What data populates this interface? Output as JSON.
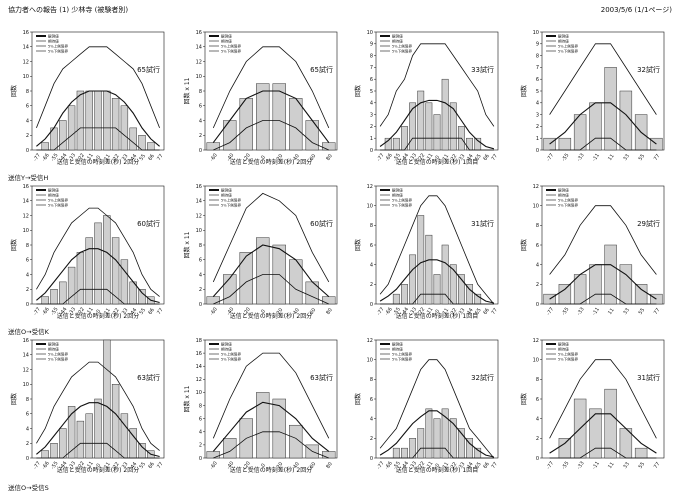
{
  "header": {
    "title": "協力者への報告 (1) 少林寺 (被験者別)",
    "date": "2003/5/6 (1/1ページ)"
  },
  "sections": [
    "送信Y→受信H",
    "送信O→受信K",
    "送信O→受信S"
  ],
  "legend_labels": [
    "観測値",
    "期待値",
    "5%上側限界",
    "5%下側限界"
  ],
  "colors": {
    "bar_fill": "#cfcfcf",
    "bar_stroke": "#333333",
    "line": "#111111"
  },
  "chart_data": [
    {
      "type": "bar",
      "trial_label": "65試行",
      "ylabel": "回数",
      "xlabel": "送信と受信の時刻差(秒)  2回分",
      "ylim": [
        0,
        16
      ],
      "yticks": [
        0,
        2,
        4,
        6,
        8,
        10,
        12,
        14,
        16
      ],
      "categories": [
        "-77",
        "-66",
        "-55",
        "-44",
        "-33",
        "-22",
        "-11",
        "0",
        "11",
        "22",
        "33",
        "44",
        "55",
        "66",
        "77"
      ],
      "values": [
        0,
        1,
        3,
        4,
        6,
        8,
        8,
        8,
        8,
        7,
        6,
        3,
        2,
        1,
        0
      ],
      "series": [
        {
          "name": "期待値",
          "values": [
            0.5,
            1.5,
            3,
            5,
            6.5,
            7.5,
            8,
            8,
            8,
            7.5,
            6.5,
            5,
            3,
            1.5,
            0.5
          ]
        },
        {
          "name": "5%上側限界",
          "values": [
            3,
            6,
            9,
            11,
            12,
            13,
            14,
            14,
            14,
            13,
            12,
            11,
            9,
            6,
            3
          ]
        },
        {
          "name": "5%下側限界",
          "values": [
            0,
            0,
            0,
            1,
            2,
            3,
            3,
            3,
            3,
            3,
            2,
            1,
            0,
            0,
            0
          ]
        }
      ]
    },
    {
      "type": "bar",
      "trial_label": "65試行",
      "ylabel": "回数 x 11",
      "xlabel": "送信と受信の時刻差(秒)  2回分",
      "ylim": [
        0,
        16
      ],
      "yticks": [
        0,
        2,
        4,
        6,
        8,
        10,
        12,
        14,
        16
      ],
      "categories": [
        "-60",
        "-40",
        "-20",
        "0",
        "20",
        "40",
        "60",
        "80"
      ],
      "values": [
        1,
        4,
        7,
        9,
        9,
        7,
        4,
        1
      ],
      "series": [
        {
          "name": "期待値",
          "values": [
            1,
            4,
            7,
            8,
            8,
            7,
            4,
            1
          ]
        },
        {
          "name": "5%上側限界",
          "values": [
            3,
            8,
            12,
            14,
            14,
            12,
            8,
            3
          ]
        },
        {
          "name": "5%下側限界",
          "values": [
            0,
            1,
            3,
            4,
            4,
            3,
            1,
            0
          ]
        }
      ]
    },
    {
      "type": "bar",
      "trial_label": "33試行",
      "ylabel": "回数",
      "xlabel": "送信と受信の時刻差(秒)  1回目",
      "ylim": [
        0,
        10
      ],
      "yticks": [
        0,
        1,
        2,
        3,
        4,
        5,
        6,
        7,
        8,
        9,
        10
      ],
      "categories": [
        "-77",
        "-66",
        "-55",
        "-44",
        "-33",
        "-22",
        "-11",
        "0",
        "11",
        "22",
        "33",
        "44",
        "55",
        "66",
        "77"
      ],
      "values": [
        0,
        1,
        1,
        2,
        4,
        5,
        4,
        3,
        6,
        4,
        2,
        1,
        1,
        0,
        0
      ],
      "series": [
        {
          "name": "期待値",
          "values": [
            0.3,
            0.8,
            1.5,
            2.5,
            3.5,
            4,
            4.2,
            4.2,
            4,
            3.5,
            2.5,
            1.5,
            0.8,
            0.3,
            0.1
          ]
        },
        {
          "name": "5%上側限界",
          "values": [
            2,
            3,
            5,
            6,
            8,
            9,
            9,
            9,
            9,
            8,
            7,
            6,
            5,
            3,
            2
          ]
        },
        {
          "name": "5%下側限界",
          "values": [
            0,
            0,
            0,
            0,
            1,
            1,
            1,
            1,
            1,
            1,
            1,
            0,
            0,
            0,
            0
          ]
        }
      ]
    },
    {
      "type": "bar",
      "trial_label": "32試行",
      "ylabel": "回数",
      "xlabel": "",
      "ylim": [
        0,
        10
      ],
      "yticks": [
        0,
        1,
        2,
        3,
        4,
        5,
        6,
        7,
        8,
        9,
        10
      ],
      "categories": [
        "-77",
        "-55",
        "-33",
        "-11",
        "11",
        "33",
        "55",
        "77"
      ],
      "values": [
        1,
        1,
        3,
        4,
        7,
        5,
        3,
        1
      ],
      "series": [
        {
          "name": "期待値",
          "values": [
            0.5,
            1.5,
            3,
            4,
            4,
            3,
            1.5,
            0.5
          ]
        },
        {
          "name": "5%上側限界",
          "values": [
            3,
            5,
            7,
            9,
            9,
            7,
            5,
            3
          ]
        },
        {
          "name": "5%下側限界",
          "values": [
            0,
            0,
            0,
            1,
            1,
            0,
            0,
            0
          ]
        }
      ]
    },
    {
      "type": "bar",
      "trial_label": "60試行",
      "ylabel": "回数",
      "xlabel": "送信と受信の時刻差(秒)  2回分",
      "ylim": [
        0,
        16
      ],
      "yticks": [
        0,
        2,
        4,
        6,
        8,
        10,
        12,
        14,
        16
      ],
      "categories": [
        "-77",
        "-66",
        "-55",
        "-44",
        "-33",
        "-22",
        "-11",
        "0",
        "11",
        "22",
        "33",
        "44",
        "55",
        "66",
        "77"
      ],
      "values": [
        0,
        1,
        2,
        3,
        5,
        7,
        9,
        11,
        12,
        9,
        6,
        3,
        2,
        1,
        0
      ],
      "series": [
        {
          "name": "期待値",
          "values": [
            0.5,
            1.5,
            3,
            4.5,
            6,
            7,
            7.5,
            7.5,
            7,
            6,
            4.5,
            3,
            1.5,
            0.5,
            0.2
          ]
        },
        {
          "name": "5%上側限界",
          "values": [
            2,
            4,
            7,
            9,
            11,
            12,
            13,
            13,
            12,
            11,
            9,
            7,
            4,
            2,
            1
          ]
        },
        {
          "name": "5%下側限界",
          "values": [
            0,
            0,
            0,
            0,
            1,
            2,
            2,
            2,
            2,
            1,
            0,
            0,
            0,
            0,
            0
          ]
        }
      ]
    },
    {
      "type": "bar",
      "trial_label": "60試行",
      "ylabel": "回数 x 11",
      "xlabel": "送信と受信の時刻差(秒)  2回分",
      "ylim": [
        0,
        16
      ],
      "yticks": [
        0,
        2,
        4,
        6,
        8,
        10,
        12,
        14,
        16
      ],
      "categories": [
        "-60",
        "-40",
        "-20",
        "0",
        "20",
        "40",
        "60",
        "80"
      ],
      "values": [
        1,
        4,
        7,
        9,
        8,
        6,
        3,
        1
      ],
      "series": [
        {
          "name": "期待値",
          "values": [
            1,
            3.5,
            6.5,
            8,
            7.5,
            6,
            3,
            1
          ]
        },
        {
          "name": "5%上側限界",
          "values": [
            3,
            8,
            13,
            15,
            14,
            12,
            7,
            3
          ]
        },
        {
          "name": "5%下側限界",
          "values": [
            0,
            1,
            3,
            4,
            4,
            2,
            1,
            0
          ]
        }
      ]
    },
    {
      "type": "bar",
      "trial_label": "31試行",
      "ylabel": "回数",
      "xlabel": "送信と受信の時刻差(秒)  1回目",
      "ylim": [
        0,
        12
      ],
      "yticks": [
        0,
        2,
        4,
        6,
        8,
        10,
        12
      ],
      "categories": [
        "-77",
        "-66",
        "-55",
        "-44",
        "-33",
        "-22",
        "-11",
        "0",
        "11",
        "22",
        "33",
        "44",
        "55",
        "66",
        "77"
      ],
      "values": [
        0,
        0,
        1,
        2,
        5,
        9,
        7,
        3,
        6,
        4,
        3,
        2,
        1,
        0,
        0
      ],
      "series": [
        {
          "name": "期待値",
          "values": [
            0.3,
            0.8,
            1.5,
            2.5,
            3.5,
            4.2,
            4.5,
            4.5,
            4.2,
            3.5,
            2.5,
            1.5,
            0.8,
            0.3,
            0.1
          ]
        },
        {
          "name": "5%上側限界",
          "values": [
            1,
            2,
            4,
            6,
            8,
            10,
            11,
            11,
            10,
            8,
            6,
            4,
            2,
            1,
            0
          ]
        },
        {
          "name": "5%下側限界",
          "values": [
            0,
            0,
            0,
            0,
            0,
            1,
            1,
            1,
            1,
            0,
            0,
            0,
            0,
            0,
            0
          ]
        }
      ]
    },
    {
      "type": "bar",
      "trial_label": "29試行",
      "ylabel": "回数",
      "xlabel": "",
      "ylim": [
        0,
        12
      ],
      "yticks": [
        0,
        2,
        4,
        6,
        8,
        10,
        12
      ],
      "categories": [
        "-77",
        "-55",
        "-33",
        "-11",
        "11",
        "33",
        "55",
        "77"
      ],
      "values": [
        1,
        2,
        3,
        4,
        6,
        4,
        2,
        1
      ],
      "series": [
        {
          "name": "期待値",
          "values": [
            0.5,
            1.5,
            3,
            4,
            4,
            3,
            1.5,
            0.5
          ]
        },
        {
          "name": "5%上側限界",
          "values": [
            3,
            5,
            8,
            10,
            10,
            8,
            5,
            3
          ]
        },
        {
          "name": "5%下側限界",
          "values": [
            0,
            0,
            0,
            1,
            1,
            0,
            0,
            0
          ]
        }
      ]
    },
    {
      "type": "bar",
      "trial_label": "63試行",
      "ylabel": "回数",
      "xlabel": "送信と受信の時刻差(秒)  2回分",
      "ylim": [
        0,
        16
      ],
      "yticks": [
        0,
        2,
        4,
        6,
        8,
        10,
        12,
        14,
        16
      ],
      "categories": [
        "-77",
        "-66",
        "-55",
        "-44",
        "-33",
        "-22",
        "-11",
        "0",
        "11",
        "22",
        "33",
        "44",
        "55",
        "66",
        "77"
      ],
      "values": [
        0,
        1,
        2,
        4,
        7,
        5,
        6,
        8,
        16,
        10,
        6,
        4,
        2,
        1,
        0
      ],
      "series": [
        {
          "name": "期待値",
          "values": [
            0.5,
            1.5,
            3,
            4.5,
            6,
            7,
            7.5,
            7.5,
            7,
            6,
            4.5,
            3,
            1.5,
            0.5,
            0.2
          ]
        },
        {
          "name": "5%上側限界",
          "values": [
            2,
            4,
            7,
            9,
            11,
            12,
            13,
            13,
            12,
            11,
            9,
            7,
            4,
            2,
            1
          ]
        },
        {
          "name": "5%下側限界",
          "values": [
            0,
            0,
            0,
            0,
            1,
            2,
            2,
            2,
            2,
            1,
            0,
            0,
            0,
            0,
            0
          ]
        }
      ]
    },
    {
      "type": "bar",
      "trial_label": "63試行",
      "ylabel": "回数 x 11",
      "xlabel": "送信と受信の時刻差(秒)  2回分",
      "ylim": [
        0,
        18
      ],
      "yticks": [
        0,
        2,
        4,
        6,
        8,
        10,
        12,
        14,
        16,
        18
      ],
      "categories": [
        "-60",
        "-40",
        "-20",
        "0",
        "20",
        "40",
        "60",
        "80"
      ],
      "values": [
        1,
        3,
        6,
        10,
        9,
        5,
        2,
        1
      ],
      "series": [
        {
          "name": "期待値",
          "values": [
            1,
            4,
            7,
            8.5,
            8,
            6,
            3,
            1
          ]
        },
        {
          "name": "5%上側限界",
          "values": [
            3,
            9,
            14,
            16,
            16,
            13,
            8,
            3
          ]
        },
        {
          "name": "5%下側限界",
          "values": [
            0,
            1,
            3,
            4,
            4,
            3,
            1,
            0
          ]
        }
      ]
    },
    {
      "type": "bar",
      "trial_label": "32試行",
      "ylabel": "回数",
      "xlabel": "送信と受信の時刻差(秒)  1回目",
      "ylim": [
        0,
        12
      ],
      "yticks": [
        0,
        2,
        4,
        6,
        8,
        10,
        12
      ],
      "categories": [
        "-77",
        "-66",
        "-55",
        "-44",
        "-33",
        "-22",
        "-11",
        "0",
        "11",
        "22",
        "33",
        "44",
        "55",
        "66",
        "77"
      ],
      "values": [
        0,
        0,
        1,
        1,
        2,
        3,
        5,
        4,
        5,
        4,
        3,
        2,
        1,
        0,
        0
      ],
      "series": [
        {
          "name": "期待値",
          "values": [
            0.3,
            0.8,
            1.5,
            2.5,
            3.5,
            4.2,
            4.8,
            4.8,
            4.2,
            3.5,
            2.5,
            1.5,
            0.8,
            0.3,
            0.1
          ]
        },
        {
          "name": "5%上側限界",
          "values": [
            1,
            2,
            3,
            5,
            7,
            9,
            10,
            10,
            9,
            7,
            5,
            3,
            2,
            1,
            0
          ]
        },
        {
          "name": "5%下側限界",
          "values": [
            0,
            0,
            0,
            0,
            0,
            1,
            1,
            1,
            1,
            0,
            0,
            0,
            0,
            0,
            0
          ]
        }
      ]
    },
    {
      "type": "bar",
      "trial_label": "31試行",
      "ylabel": "回数",
      "xlabel": "",
      "ylim": [
        0,
        12
      ],
      "yticks": [
        0,
        2,
        4,
        6,
        8,
        10,
        12
      ],
      "categories": [
        "-77",
        "-55",
        "-33",
        "-11",
        "11",
        "33",
        "55",
        "77"
      ],
      "values": [
        0,
        2,
        6,
        5,
        7,
        3,
        1,
        0
      ],
      "series": [
        {
          "name": "期待値",
          "values": [
            0.5,
            1.5,
            3,
            4.5,
            4.5,
            3,
            1.5,
            0.5
          ]
        },
        {
          "name": "5%上側限界",
          "values": [
            2,
            5,
            8,
            10,
            10,
            8,
            5,
            2
          ]
        },
        {
          "name": "5%下側限界",
          "values": [
            0,
            0,
            0,
            1,
            1,
            0,
            0,
            0
          ]
        }
      ]
    }
  ]
}
